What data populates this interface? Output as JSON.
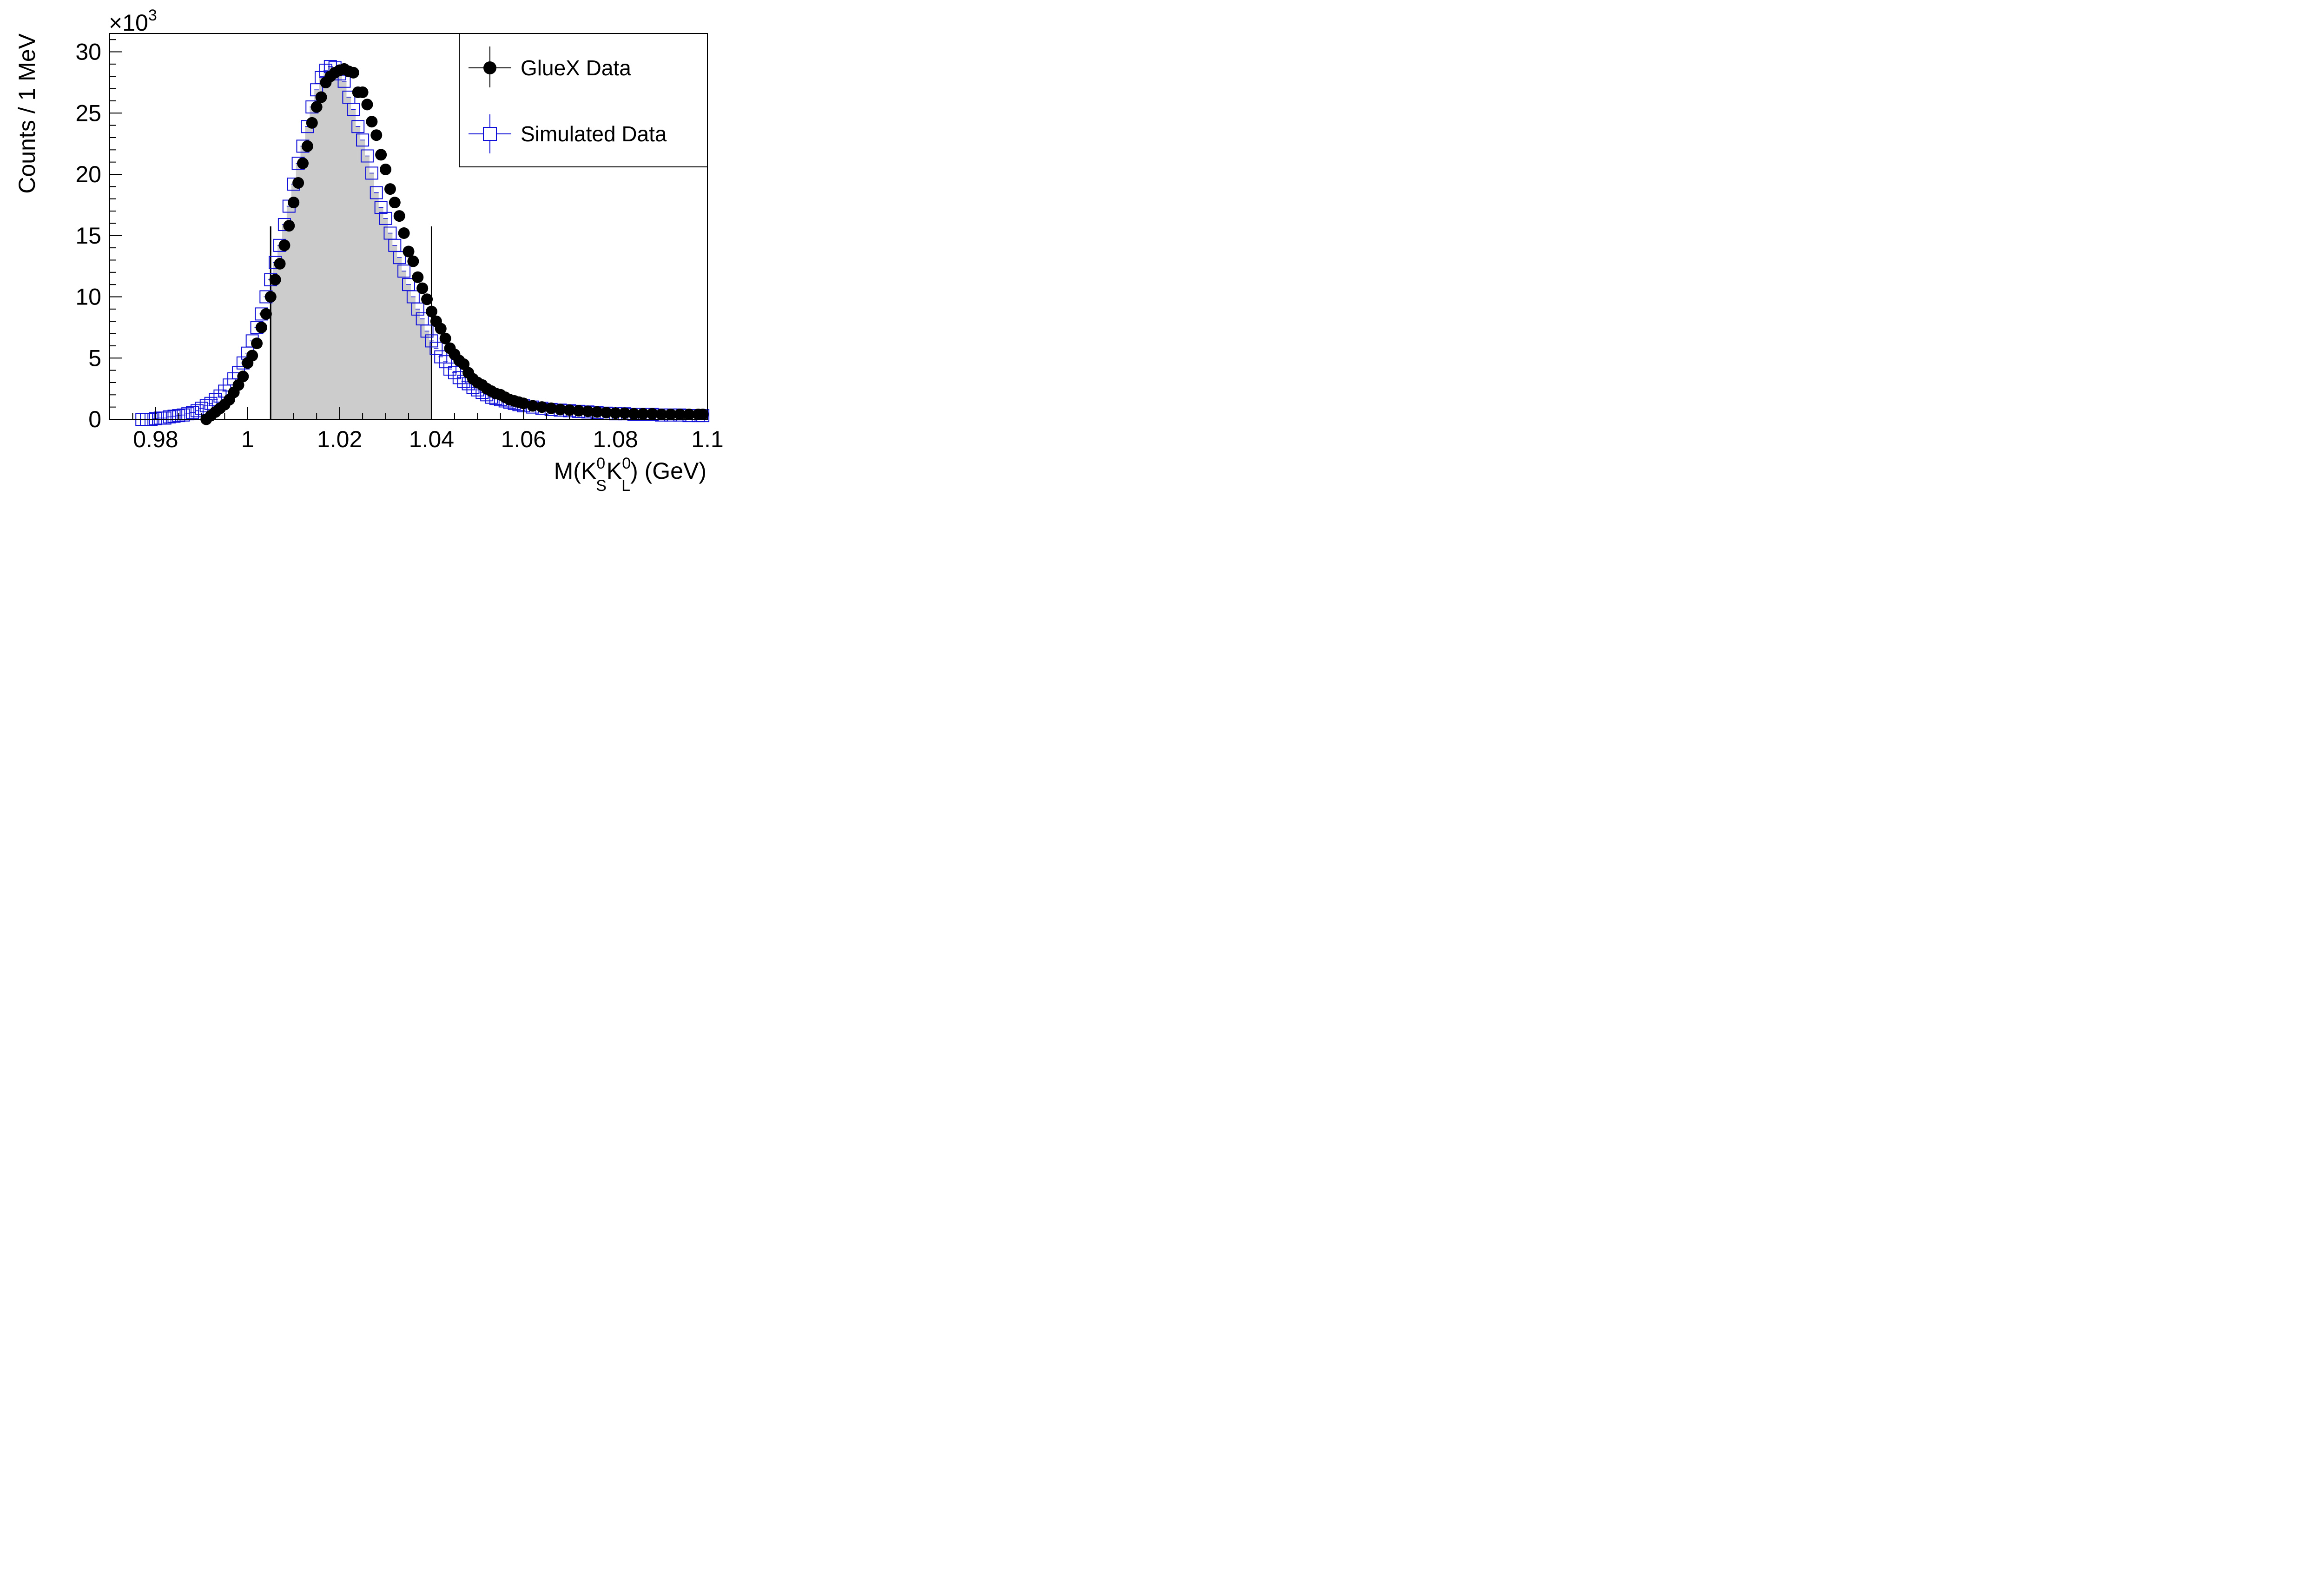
{
  "chart_data": {
    "type": "scatter",
    "xlabel": "M(K",
    "xlabel_sub_s": "S",
    "xlabel_mid": "K",
    "xlabel_sub_l": "L",
    "xlabel_sup": "0",
    "xlabel_tail": ") (GeV)",
    "ylabel": "Counts / 1 MeV",
    "y_multiplier_base": "×10",
    "y_multiplier_exp": "3",
    "xlim": [
      0.97,
      1.1
    ],
    "ylim": [
      0,
      31.5
    ],
    "x_ticks": [
      0.98,
      1.0,
      1.02,
      1.04,
      1.06,
      1.08,
      1.1
    ],
    "x_tick_labels": [
      "0.98",
      "1",
      "1.02",
      "1.04",
      "1.06",
      "1.08",
      "1.1"
    ],
    "y_ticks": [
      0,
      5,
      10,
      15,
      20,
      25,
      30
    ],
    "y_tick_labels": [
      "0",
      "5",
      "10",
      "15",
      "20",
      "25",
      "30"
    ],
    "legend_position": "top-right",
    "selection_window": [
      1.005,
      1.04
    ],
    "colors": {
      "data": "#000000",
      "simulation": "#1010d8",
      "fill": "#cccccc"
    },
    "series": [
      {
        "name": "GlueX Data",
        "marker": "filled-circle",
        "x": [
          0.991,
          0.992,
          0.993,
          0.994,
          0.995,
          0.996,
          0.997,
          0.998,
          0.999,
          1.0,
          1.001,
          1.002,
          1.003,
          1.004,
          1.005,
          1.006,
          1.007,
          1.008,
          1.009,
          1.01,
          1.011,
          1.012,
          1.013,
          1.014,
          1.015,
          1.016,
          1.017,
          1.018,
          1.019,
          1.02,
          1.021,
          1.022,
          1.023,
          1.024,
          1.025,
          1.026,
          1.027,
          1.028,
          1.029,
          1.03,
          1.031,
          1.032,
          1.033,
          1.034,
          1.035,
          1.036,
          1.037,
          1.038,
          1.039,
          1.04,
          1.041,
          1.042,
          1.043,
          1.044,
          1.045,
          1.046,
          1.047,
          1.048,
          1.049,
          1.05,
          1.051,
          1.052,
          1.053,
          1.054,
          1.055,
          1.056,
          1.057,
          1.058,
          1.059,
          1.06,
          1.062,
          1.064,
          1.066,
          1.068,
          1.07,
          1.072,
          1.074,
          1.076,
          1.078,
          1.08,
          1.082,
          1.084,
          1.086,
          1.088,
          1.09,
          1.092,
          1.094,
          1.096,
          1.098,
          1.099
        ],
        "y": [
          0.0,
          0.3,
          0.6,
          0.9,
          1.2,
          1.6,
          2.2,
          2.8,
          3.5,
          4.6,
          5.2,
          6.2,
          7.5,
          8.6,
          10.0,
          11.4,
          12.7,
          14.2,
          15.8,
          17.7,
          19.3,
          20.9,
          22.3,
          24.2,
          25.5,
          26.3,
          27.5,
          28.0,
          28.3,
          28.5,
          28.6,
          28.4,
          28.3,
          26.7,
          26.7,
          25.7,
          24.3,
          23.2,
          21.6,
          20.4,
          18.8,
          17.7,
          16.6,
          15.2,
          13.7,
          12.9,
          11.6,
          10.7,
          9.8,
          8.8,
          8.0,
          7.4,
          6.6,
          5.8,
          5.3,
          4.8,
          4.5,
          3.8,
          3.3,
          3.0,
          2.8,
          2.5,
          2.3,
          2.1,
          2.0,
          1.8,
          1.6,
          1.5,
          1.4,
          1.3,
          1.1,
          1.0,
          0.9,
          0.8,
          0.75,
          0.7,
          0.65,
          0.6,
          0.55,
          0.5,
          0.5,
          0.45,
          0.45,
          0.45,
          0.4,
          0.4,
          0.4,
          0.4,
          0.4,
          0.4
        ]
      },
      {
        "name": "Simulated Data",
        "marker": "open-square",
        "x": [
          0.977,
          0.978,
          0.979,
          0.98,
          0.981,
          0.982,
          0.983,
          0.984,
          0.985,
          0.986,
          0.987,
          0.988,
          0.989,
          0.99,
          0.991,
          0.992,
          0.993,
          0.994,
          0.995,
          0.996,
          0.997,
          0.998,
          0.999,
          1.0,
          1.001,
          1.002,
          1.003,
          1.004,
          1.005,
          1.006,
          1.007,
          1.008,
          1.009,
          1.01,
          1.011,
          1.012,
          1.013,
          1.014,
          1.015,
          1.016,
          1.017,
          1.018,
          1.019,
          1.02,
          1.021,
          1.022,
          1.023,
          1.024,
          1.025,
          1.026,
          1.027,
          1.028,
          1.029,
          1.03,
          1.031,
          1.032,
          1.033,
          1.034,
          1.035,
          1.036,
          1.037,
          1.038,
          1.039,
          1.04,
          1.041,
          1.042,
          1.043,
          1.044,
          1.045,
          1.046,
          1.047,
          1.048,
          1.049,
          1.05,
          1.051,
          1.052,
          1.053,
          1.054,
          1.055,
          1.056,
          1.057,
          1.058,
          1.059,
          1.06,
          1.062,
          1.064,
          1.066,
          1.068,
          1.07,
          1.072,
          1.074,
          1.076,
          1.078,
          1.08,
          1.082,
          1.084,
          1.086,
          1.088,
          1.09,
          1.092,
          1.094,
          1.096,
          1.098,
          1.099
        ],
        "y": [
          0.0,
          0.0,
          0.0,
          0.05,
          0.1,
          0.1,
          0.2,
          0.25,
          0.3,
          0.35,
          0.45,
          0.55,
          0.7,
          0.9,
          1.1,
          1.3,
          1.6,
          1.9,
          2.3,
          2.8,
          3.3,
          3.8,
          4.6,
          5.4,
          6.4,
          7.5,
          8.6,
          10.0,
          11.4,
          12.8,
          14.2,
          15.9,
          17.4,
          19.2,
          20.9,
          22.3,
          23.9,
          25.5,
          26.9,
          27.9,
          28.5,
          28.8,
          28.7,
          28.2,
          27.6,
          26.3,
          25.3,
          23.9,
          22.8,
          21.5,
          20.1,
          18.5,
          17.3,
          16.4,
          15.2,
          14.2,
          13.2,
          12.1,
          11.0,
          10.0,
          9.0,
          8.2,
          7.2,
          6.4,
          5.8,
          5.1,
          4.7,
          4.1,
          3.8,
          3.4,
          3.1,
          2.9,
          2.6,
          2.4,
          2.2,
          2.0,
          1.8,
          1.7,
          1.6,
          1.5,
          1.4,
          1.3,
          1.2,
          1.1,
          1.0,
          0.9,
          0.8,
          0.75,
          0.7,
          0.65,
          0.6,
          0.55,
          0.5,
          0.45,
          0.45,
          0.4,
          0.4,
          0.4,
          0.35,
          0.35,
          0.35,
          0.3,
          0.3,
          0.3
        ]
      }
    ]
  }
}
